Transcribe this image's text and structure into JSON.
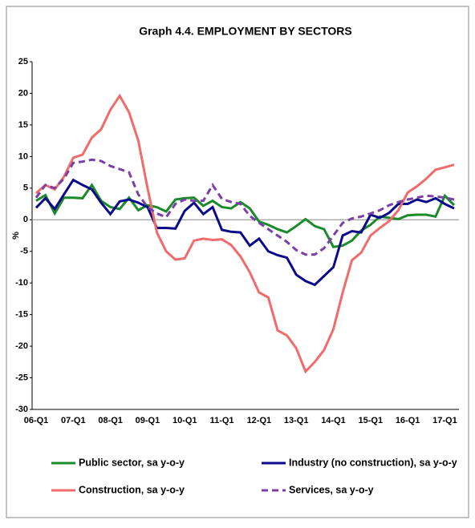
{
  "chart_data": {
    "type": "line",
    "title": "Graph 4.4. EMPLOYMENT BY SECTORS",
    "y_label": "%",
    "categories": [
      "06-Q1",
      null,
      null,
      null,
      "07-Q1",
      null,
      null,
      null,
      "08-Q1",
      null,
      null,
      null,
      "09-Q1",
      null,
      null,
      null,
      "10-Q1",
      null,
      null,
      null,
      "11-Q1",
      null,
      null,
      null,
      "12-Q1",
      null,
      null,
      null,
      "13-Q1",
      null,
      null,
      null,
      "14-Q1",
      null,
      null,
      null,
      "15-Q1",
      null,
      null,
      null,
      "16-Q1",
      null,
      null,
      null,
      "17-Q1",
      null
    ],
    "series": [
      {
        "name": "Public sector, sa y-o-y",
        "color": "#1a8a2a",
        "dash": false,
        "values": [
          3,
          3.9,
          1.0,
          3.5,
          3.5,
          3.4,
          5.5,
          3.0,
          2.0,
          1.7,
          3.5,
          1.5,
          2.3,
          2.0,
          1.3,
          3.2,
          3.4,
          3.5,
          2.2,
          3.0,
          2.0,
          1.8,
          2.8,
          1.8,
          -0.3,
          -0.8,
          -1.5,
          -2.0,
          -1.0,
          0.1,
          -1.0,
          -1.5,
          -4.3,
          -4.1,
          -3.3,
          -1.7,
          -0.8,
          0.5,
          0.3,
          0.1,
          0.7,
          0.8,
          0.8,
          0.5,
          3.8,
          2.3
        ]
      },
      {
        "name": "Industry (no construction), sa y-o-y",
        "color": "#0a0a8a",
        "dash": false,
        "values": [
          1.9,
          3.4,
          1.7,
          4.0,
          6.3,
          5.5,
          4.8,
          2.7,
          0.9,
          2.9,
          3.2,
          2.7,
          2.0,
          -1.3,
          -1.3,
          -1.4,
          1.4,
          2.7,
          0.9,
          2.0,
          -1.6,
          -1.9,
          -2.0,
          -4.1,
          -3.0,
          -5.0,
          -5.6,
          -6.0,
          -8.7,
          -9.7,
          -10.3,
          -8.9,
          -7.5,
          -2.5,
          -1.8,
          -2.0,
          0.8,
          0.3,
          1.1,
          2.5,
          2.5,
          3.2,
          2.8,
          3.4,
          2.5,
          1.8
        ]
      },
      {
        "name": "Construction, sa y-o-y",
        "color": "#f26b6b",
        "dash": false,
        "values": [
          4.2,
          5.5,
          4.8,
          6.8,
          9.8,
          10.3,
          13,
          14.3,
          17.4,
          19.6,
          17,
          12.5,
          5,
          -2,
          -5,
          -6.3,
          -6.1,
          -3.3,
          -3,
          -3.2,
          -3.1,
          -4,
          -5.8,
          -8.3,
          -11.5,
          -12.3,
          -17.5,
          -18.3,
          -20.3,
          -24,
          -22.5,
          -20.6,
          -17.3,
          -11.5,
          -6.4,
          -5.2,
          -2.5,
          -1.3,
          -0.2,
          1.5,
          4.3,
          5.3,
          6.5,
          7.9,
          8.3,
          8.7
        ]
      },
      {
        "name": "Services, sa y-o-y",
        "color": "#7b3fa8",
        "dash": true,
        "values": [
          3.5,
          5.5,
          5.0,
          6.5,
          9.0,
          9.2,
          9.5,
          9.3,
          8.5,
          8.0,
          7.5,
          4.0,
          2.0,
          1.0,
          0.4,
          2.5,
          3.2,
          3.0,
          3.0,
          5.5,
          3.3,
          2.8,
          2.5,
          0.6,
          -0.5,
          -1.5,
          -2.5,
          -3.5,
          -4.8,
          -5.5,
          -5.5,
          -4.5,
          -2.5,
          -0.5,
          0.2,
          0.5,
          1.0,
          1.5,
          2.3,
          2.8,
          3.2,
          3.5,
          3.8,
          3.7,
          3.5,
          3.2
        ]
      }
    ],
    "ylim": [
      -30,
      25
    ],
    "yticks": [
      -30,
      -25,
      -20,
      -15,
      -10,
      -5,
      0,
      5,
      10,
      15,
      20,
      25
    ]
  }
}
